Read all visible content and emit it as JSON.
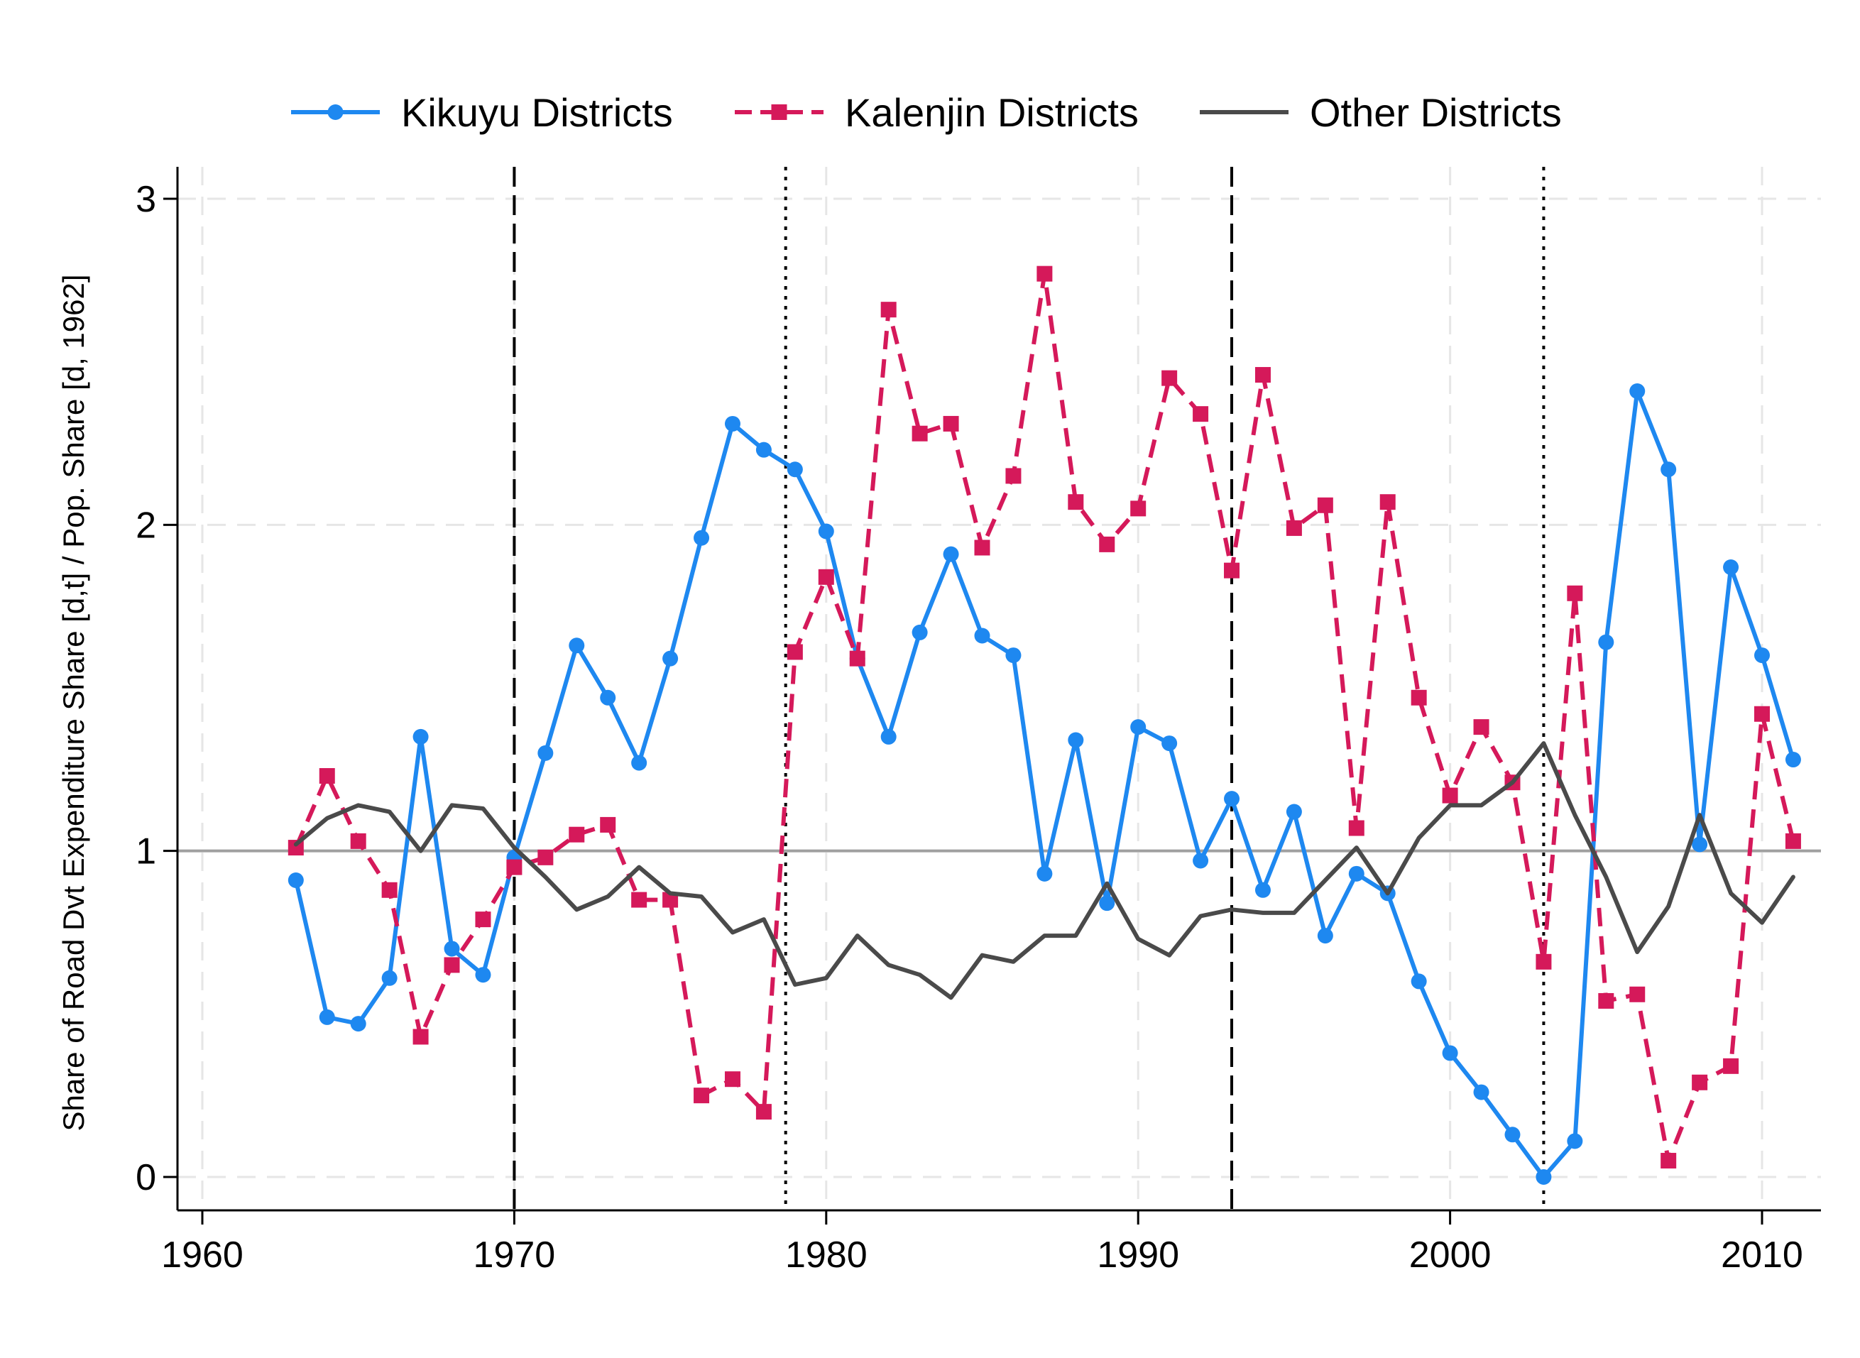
{
  "chart_data": {
    "type": "line",
    "title": "",
    "xlabel": "",
    "ylabel": "Share of Road Dvt Expenditure Share [d,t] / Pop. Share [d, 1962]",
    "xlim": [
      1959.3,
      1961.0
    ],
    "ylim": [
      -0.09,
      3.1
    ],
    "x_ticks": [
      1960,
      1970,
      1980,
      1990,
      2000,
      2010
    ],
    "x_tick_labels": [
      "1960",
      "1970",
      "1980",
      "1990",
      "2000",
      "2010"
    ],
    "y_ticks": [
      0,
      1,
      2,
      3
    ],
    "y_tick_labels": [
      "0",
      "1",
      "2",
      "3"
    ],
    "grid": true,
    "legend_position": "top",
    "reference_line": {
      "y": 1,
      "color": "#a0a0a0"
    },
    "vertical_lines": [
      {
        "x": 1970,
        "style": "dashed"
      },
      {
        "x": 1978.7,
        "style": "dotted"
      },
      {
        "x": 1993,
        "style": "dashed"
      },
      {
        "x": 2003,
        "style": "dotted"
      }
    ],
    "x": [
      1963,
      1964,
      1965,
      1966,
      1967,
      1968,
      1969,
      1970,
      1971,
      1972,
      1973,
      1974,
      1975,
      1976,
      1977,
      1978,
      1979,
      1980,
      1981,
      1982,
      1983,
      1984,
      1985,
      1986,
      1987,
      1988,
      1989,
      1990,
      1991,
      1992,
      1993,
      1994,
      1995,
      1996,
      1997,
      1998,
      1999,
      2000,
      2001,
      2002,
      2003,
      2004,
      2005,
      2006,
      2007,
      2008,
      2009,
      2010,
      2011
    ],
    "series": [
      {
        "name": "Kikuyu Districts",
        "color": "#1e88f0",
        "style": "solid",
        "marker": "circle",
        "values": [
          0.91,
          0.49,
          0.47,
          0.61,
          1.35,
          0.7,
          0.62,
          0.98,
          1.3,
          1.63,
          1.47,
          1.27,
          1.59,
          1.96,
          2.31,
          2.23,
          2.17,
          1.98,
          1.59,
          1.35,
          1.67,
          1.91,
          1.66,
          1.6,
          0.93,
          1.34,
          0.84,
          1.38,
          1.33,
          0.97,
          1.16,
          0.88,
          1.12,
          0.74,
          0.93,
          0.87,
          0.6,
          0.38,
          0.26,
          0.13,
          0.0,
          0.11,
          1.64,
          2.41,
          2.17,
          1.02,
          1.87,
          1.6,
          1.28
        ]
      },
      {
        "name": "Kalenjin Districts",
        "color": "#d5195a",
        "style": "dashed",
        "marker": "square",
        "values": [
          1.01,
          1.23,
          1.03,
          0.88,
          0.43,
          0.65,
          0.79,
          0.95,
          0.98,
          1.05,
          1.08,
          0.85,
          0.85,
          0.25,
          0.3,
          0.2,
          1.61,
          1.84,
          1.59,
          2.66,
          2.28,
          2.31,
          1.93,
          2.15,
          2.77,
          2.07,
          1.94,
          2.05,
          2.45,
          2.34,
          1.86,
          2.46,
          1.99,
          2.06,
          1.07,
          2.07,
          1.47,
          1.17,
          1.38,
          1.21,
          0.66,
          1.79,
          0.54,
          0.56,
          0.05,
          0.29,
          0.34,
          1.42,
          1.03
        ]
      },
      {
        "name": "Other Districts",
        "color": "#4a4a4a",
        "style": "solid",
        "marker": "none",
        "values": [
          1.02,
          1.1,
          1.14,
          1.12,
          1.0,
          1.14,
          1.13,
          1.01,
          0.92,
          0.82,
          0.86,
          0.95,
          0.87,
          0.86,
          0.75,
          0.79,
          0.59,
          0.61,
          0.74,
          0.65,
          0.62,
          0.55,
          0.68,
          0.66,
          0.74,
          0.74,
          0.9,
          0.73,
          0.68,
          0.8,
          0.82,
          0.81,
          0.81,
          0.91,
          1.01,
          0.87,
          1.04,
          1.14,
          1.14,
          1.21,
          1.33,
          1.11,
          0.92,
          0.69,
          0.83,
          1.11,
          0.87,
          0.78,
          0.92
        ]
      }
    ]
  }
}
